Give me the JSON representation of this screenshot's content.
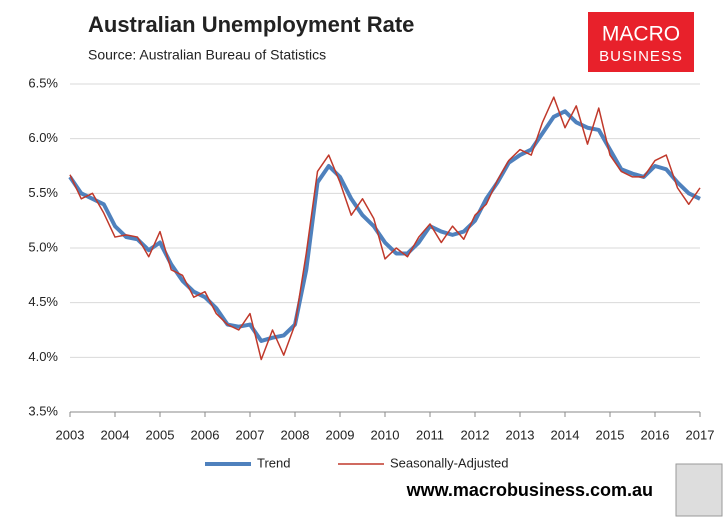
{
  "chart_data": {
    "type": "line",
    "title": "Australian Unemployment Rate",
    "subtitle": "Source: Australian Bureau of Statistics",
    "logo": [
      "MACRO",
      "BUSINESS"
    ],
    "footer": "www.macrobusiness.com.au",
    "x": [
      2003.0,
      2003.25,
      2003.5,
      2003.75,
      2004.0,
      2004.25,
      2004.5,
      2004.75,
      2005.0,
      2005.25,
      2005.5,
      2005.75,
      2006.0,
      2006.25,
      2006.5,
      2006.75,
      2007.0,
      2007.25,
      2007.5,
      2007.75,
      2008.0,
      2008.25,
      2008.5,
      2008.75,
      2009.0,
      2009.25,
      2009.5,
      2009.75,
      2010.0,
      2010.25,
      2010.5,
      2010.75,
      2011.0,
      2011.25,
      2011.5,
      2011.75,
      2012.0,
      2012.25,
      2012.5,
      2012.75,
      2013.0,
      2013.25,
      2013.5,
      2013.75,
      2014.0,
      2014.25,
      2014.5,
      2014.75,
      2015.0,
      2015.25,
      2015.5,
      2015.75,
      2016.0,
      2016.25,
      2016.5,
      2016.75,
      2017.0
    ],
    "series": [
      {
        "name": "Trend",
        "color": "#4f81bd",
        "width": 4,
        "values": [
          5.65,
          5.5,
          5.45,
          5.4,
          5.2,
          5.1,
          5.08,
          4.98,
          5.05,
          4.85,
          4.7,
          4.6,
          4.55,
          4.45,
          4.3,
          4.28,
          4.3,
          4.15,
          4.18,
          4.2,
          4.3,
          4.8,
          5.6,
          5.75,
          5.65,
          5.45,
          5.3,
          5.2,
          5.05,
          4.95,
          4.95,
          5.05,
          5.2,
          5.15,
          5.12,
          5.15,
          5.25,
          5.45,
          5.6,
          5.78,
          5.85,
          5.9,
          6.05,
          6.2,
          6.25,
          6.15,
          6.1,
          6.08,
          5.9,
          5.72,
          5.68,
          5.65,
          5.75,
          5.72,
          5.6,
          5.5,
          5.45
        ]
      },
      {
        "name": "Seasonally-Adjusted",
        "color": "#c0392b",
        "width": 1.5,
        "values": [
          5.67,
          5.45,
          5.5,
          5.32,
          5.1,
          5.12,
          5.1,
          4.92,
          5.15,
          4.8,
          4.75,
          4.55,
          4.6,
          4.4,
          4.3,
          4.25,
          4.4,
          3.98,
          4.25,
          4.02,
          4.3,
          4.95,
          5.7,
          5.85,
          5.6,
          5.3,
          5.45,
          5.27,
          4.9,
          5.0,
          4.92,
          5.1,
          5.22,
          5.05,
          5.2,
          5.08,
          5.3,
          5.4,
          5.62,
          5.8,
          5.9,
          5.85,
          6.15,
          6.38,
          6.1,
          6.3,
          5.95,
          6.28,
          5.85,
          5.7,
          5.65,
          5.65,
          5.8,
          5.85,
          5.55,
          5.4,
          5.55
        ]
      }
    ],
    "xlim": [
      2003,
      2017
    ],
    "xticks": [
      2003,
      2004,
      2005,
      2006,
      2007,
      2008,
      2009,
      2010,
      2011,
      2012,
      2013,
      2014,
      2015,
      2016,
      2017
    ],
    "ylim": [
      3.5,
      6.5
    ],
    "yticks": [
      {
        "value": 3.5,
        "label": "3.5%"
      },
      {
        "value": 4.0,
        "label": "4.0%"
      },
      {
        "value": 4.5,
        "label": "4.5%"
      },
      {
        "value": 5.0,
        "label": "5.0%"
      },
      {
        "value": 5.5,
        "label": "5.5%"
      },
      {
        "value": 6.0,
        "label": "6.0%"
      },
      {
        "value": 6.5,
        "label": "6.5%"
      }
    ],
    "grid": true
  }
}
